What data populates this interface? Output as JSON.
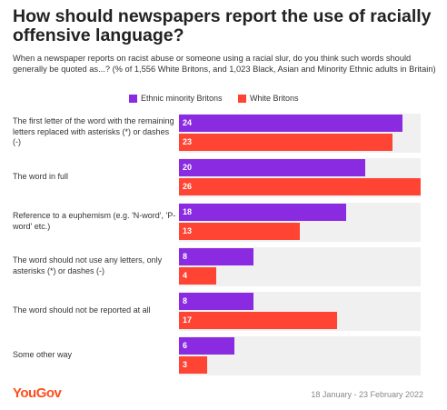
{
  "title": "How should newspapers report the use of racially offensive language?",
  "subtitle": "When a newspaper reports on racist abuse or someone using a racial slur, do you think such words should generally be quoted as...? (% of 1,556 White Britons, and 1,023 Black, Asian and Minority Ethnic adults in Britain)",
  "footer": {
    "logo": "YouGov",
    "date": "18 January - 23 February 2022"
  },
  "colors": {
    "ethnic_minority": "#8a2be2",
    "white": "#ff4433",
    "row_background": "#f0f0f0",
    "brand": "#ff4d1f"
  },
  "chart_data": {
    "type": "bar",
    "orientation": "horizontal",
    "title": "How should newspapers report the use of racially offensive language?",
    "categories": [
      "The first letter of the word with the remaining letters replaced with asterisks (*) or dashes (-)",
      "The word in full",
      "Reference to a euphemism (e.g. 'N-word', 'P-word' etc.)",
      "The word should not use any letters, only asterisks (*) or dashes (-)",
      "The word should not be reported at all",
      "Some other way"
    ],
    "series": [
      {
        "name": "Ethnic minority Britons",
        "values": [
          24,
          20,
          18,
          8,
          8,
          6
        ]
      },
      {
        "name": "White Britons",
        "values": [
          23,
          26,
          13,
          4,
          17,
          3
        ]
      }
    ],
    "xlim": [
      0,
      26
    ],
    "legend_position": "top-center",
    "grid": false
  }
}
